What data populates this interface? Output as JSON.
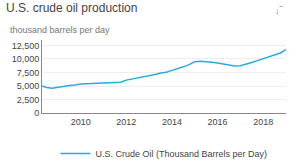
{
  "chart_data": {
    "type": "line",
    "title": "U.S. crude oil production",
    "subtitle": "thousand barrels per day",
    "annotations": [
      {
        "text": "↓‾"
      }
    ],
    "x": [
      2008.3,
      2008.5,
      2008.75,
      2009.0,
      2009.25,
      2009.5,
      2009.75,
      2010.0,
      2010.25,
      2010.5,
      2010.75,
      2011.0,
      2011.25,
      2011.5,
      2011.75,
      2012.0,
      2012.25,
      2012.5,
      2012.75,
      2013.0,
      2013.25,
      2013.5,
      2013.75,
      2014.0,
      2014.25,
      2014.5,
      2014.75,
      2015.0,
      2015.25,
      2015.5,
      2015.75,
      2016.0,
      2016.25,
      2016.5,
      2016.75,
      2017.0,
      2017.25,
      2017.5,
      2017.75,
      2018.0,
      2018.25,
      2018.5,
      2018.75,
      2019.0
    ],
    "series": [
      {
        "name": "U.S. Crude Oil (Thousand Barrels per Day)",
        "color": "#29ABE2",
        "values": [
          5000,
          4750,
          4600,
          4800,
          5000,
          5100,
          5200,
          5400,
          5450,
          5500,
          5530,
          5600,
          5620,
          5650,
          5700,
          6100,
          6300,
          6500,
          6650,
          6900,
          7150,
          7400,
          7550,
          7900,
          8200,
          8550,
          8950,
          9500,
          9600,
          9550,
          9400,
          9250,
          9050,
          8800,
          8700,
          8750,
          9000,
          9350,
          9700,
          10050,
          10350,
          10700,
          11100,
          11700
        ]
      }
    ],
    "xlim": [
      2008.3,
      2019.0
    ],
    "xticks": [
      2010,
      2012,
      2014,
      2016,
      2018
    ],
    "ylim": [
      0,
      13500
    ],
    "yticks": [
      0,
      {
        "value": 2500,
        "label": "2,500"
      },
      {
        "value": 5000,
        "label": "5,000"
      },
      {
        "value": 7500,
        "label": "7,500"
      },
      {
        "value": 10000,
        "label": "10,000"
      },
      {
        "value": 12500,
        "label": "12,500"
      }
    ],
    "grid": true,
    "legend": "bottom"
  }
}
